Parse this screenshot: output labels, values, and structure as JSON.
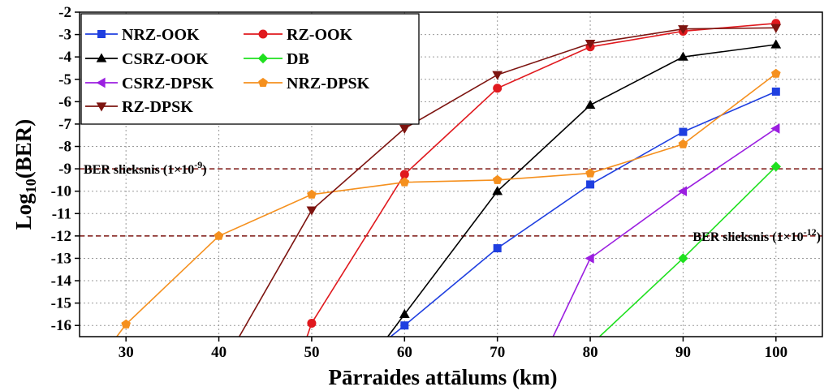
{
  "chart_data": {
    "type": "line",
    "xlabel": "Pārraides attālums (km)",
    "ylabel_main": "Log",
    "ylabel_sub": "10",
    "ylabel_rest": "(BER)",
    "xlim": [
      25,
      105
    ],
    "ylim": [
      -16.5,
      -2
    ],
    "xticks": [
      30,
      40,
      50,
      60,
      70,
      80,
      90,
      100
    ],
    "yticks": [
      -2,
      -3,
      -4,
      -5,
      -6,
      -7,
      -8,
      -9,
      -10,
      -11,
      -12,
      -13,
      -14,
      -15,
      -16
    ],
    "grid": true,
    "legend_placement": "top-left",
    "thresholds": [
      {
        "y": -9,
        "label_main": "BER slieksnis (1×10",
        "label_exp": "-9",
        "label_end": ")",
        "anchor": "left"
      },
      {
        "y": -12,
        "label_main": "BER slieksnis (1×10",
        "label_exp": "-12",
        "label_end": ")",
        "anchor": "right"
      }
    ],
    "series": [
      {
        "name": "NRZ-OOK",
        "color": "#1f3fe0",
        "marker": "square",
        "x": [
          58.5,
          60,
          70,
          80,
          90,
          100
        ],
        "y": [
          -16.5,
          -16.0,
          -12.55,
          -9.7,
          -7.35,
          -5.55
        ]
      },
      {
        "name": "RZ-OOK",
        "color": "#e0191e",
        "marker": "circle",
        "x": [
          49.5,
          50,
          60,
          70,
          80,
          90,
          100
        ],
        "y": [
          -16.5,
          -15.9,
          -9.25,
          -5.4,
          -3.55,
          -2.85,
          -2.5
        ]
      },
      {
        "name": "CSRZ-OOK",
        "color": "#000000",
        "marker": "triangle-up",
        "x": [
          58.2,
          60,
          70,
          80,
          90,
          100
        ],
        "y": [
          -16.5,
          -15.5,
          -10.0,
          -6.15,
          -4.0,
          -3.45
        ]
      },
      {
        "name": "DB",
        "color": "#1fe01f",
        "marker": "diamond",
        "x": [
          81.0,
          90,
          100
        ],
        "y": [
          -16.5,
          -13.0,
          -8.9
        ]
      },
      {
        "name": "CSRZ-DPSK",
        "color": "#9b1fe0",
        "marker": "triangle-left",
        "x": [
          76.0,
          80,
          90,
          100
        ],
        "y": [
          -16.5,
          -13.0,
          -10.0,
          -7.2
        ]
      },
      {
        "name": "NRZ-DPSK",
        "color": "#f5901e",
        "marker": "pentagon",
        "x": [
          29.0,
          30,
          40,
          50,
          60,
          70,
          80,
          90,
          100
        ],
        "y": [
          -16.5,
          -15.95,
          -12.0,
          -10.15,
          -9.6,
          -9.5,
          -9.2,
          -7.9,
          -4.75
        ]
      },
      {
        "name": "RZ-DPSK",
        "color": "#7d1410",
        "marker": "triangle-down",
        "x": [
          42.2,
          50,
          60,
          70,
          80,
          90,
          100
        ],
        "y": [
          -16.5,
          -10.85,
          -7.2,
          -4.8,
          -3.4,
          -2.75,
          -2.7
        ]
      }
    ]
  }
}
